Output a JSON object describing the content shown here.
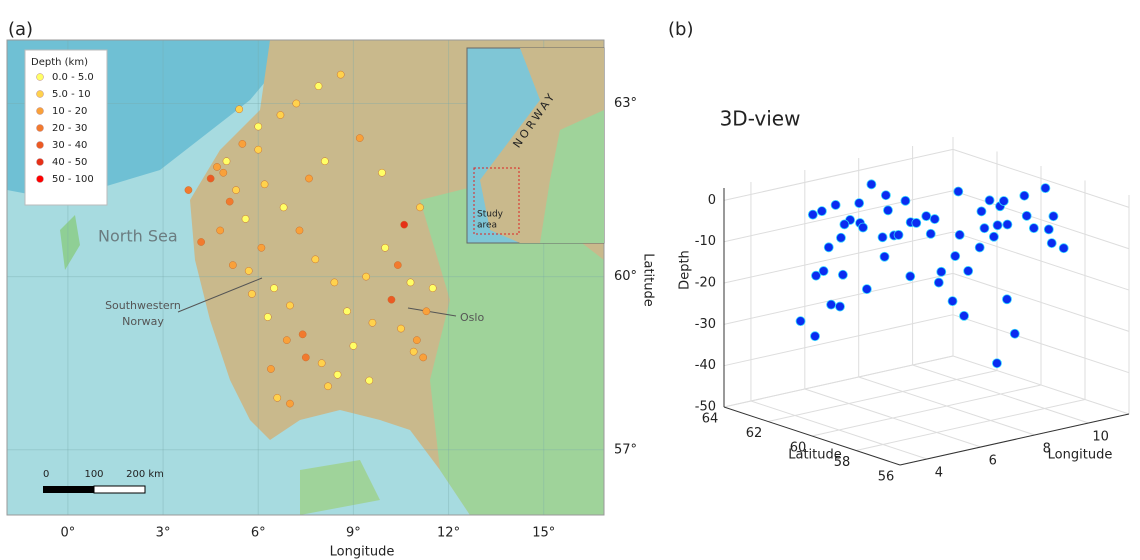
{
  "panel_a": {
    "label": "(a)",
    "x_label": "Longitude",
    "y_label": "Latitude",
    "xlim": [
      -1.92,
      16.9
    ],
    "ylim": [
      55.87,
      64.1
    ],
    "xticks": [
      {
        "value": 0,
        "label": "0°"
      },
      {
        "value": 3,
        "label": "3°"
      },
      {
        "value": 6,
        "label": "6°"
      },
      {
        "value": 9,
        "label": "9°"
      },
      {
        "value": 12,
        "label": "12°"
      },
      {
        "value": 15,
        "label": "15°"
      }
    ],
    "yticks": [
      {
        "value": 57,
        "label": "57°"
      },
      {
        "value": 60,
        "label": "60°"
      },
      {
        "value": 63,
        "label": "63°"
      }
    ],
    "legend_title": "Depth (km)",
    "depth_classes": [
      {
        "min": 0,
        "max": 5,
        "label": "0.0 - 5.0",
        "color": "#ffff66"
      },
      {
        "min": 5,
        "max": 10,
        "label": "5.0 - 10",
        "color": "#ffd24d"
      },
      {
        "min": 10,
        "max": 20,
        "label": "10 - 20",
        "color": "#f9a13a"
      },
      {
        "min": 20,
        "max": 30,
        "label": "20 - 30",
        "color": "#f27a2e"
      },
      {
        "min": 30,
        "max": 40,
        "label": "30 - 40",
        "color": "#ec5a23"
      },
      {
        "min": 40,
        "max": 50,
        "label": "40 - 50",
        "color": "#e63017"
      },
      {
        "min": 50,
        "max": 100,
        "label": "50 - 100",
        "color": "#ff0000"
      }
    ],
    "annotations": {
      "sea": "North Sea",
      "region": [
        "Southwestern",
        "Norway"
      ],
      "city": "Oslo"
    },
    "inset": {
      "country": "NORWAY",
      "area_label": [
        "Study",
        "area"
      ]
    },
    "scale_bar": [
      0,
      100,
      {
        "value": 200,
        "label": "200 km"
      }
    ],
    "events": {
      "lon": [
        5.0,
        5.3,
        4.8,
        5.6,
        6.1,
        6.5,
        7.0,
        7.4,
        8.0,
        8.5,
        9.0,
        9.6,
        10.2,
        10.8,
        11.3,
        5.2,
        5.8,
        6.3,
        6.9,
        7.5,
        8.2,
        8.8,
        9.4,
        10.0,
        10.6,
        11.1,
        4.9,
        5.5,
        6.0,
        6.7,
        7.2,
        7.9,
        8.6,
        9.2,
        9.9,
        10.4,
        11.0,
        6.2,
        6.8,
        7.3,
        7.8,
        8.4,
        5.1,
        5.7,
        6.4,
        4.5,
        4.7,
        7.0,
        6.6,
        9.5,
        10.9,
        11.5,
        8.1,
        7.6,
        6.0,
        5.4,
        3.8,
        4.2,
        10.5,
        11.2
      ],
      "lat": [
        62.0,
        61.5,
        60.8,
        61.0,
        60.5,
        59.8,
        59.5,
        59.0,
        58.5,
        58.3,
        58.8,
        59.2,
        59.6,
        59.9,
        59.4,
        60.2,
        59.7,
        59.3,
        58.9,
        58.6,
        58.1,
        59.4,
        60.0,
        60.5,
        60.9,
        61.2,
        61.8,
        62.3,
        62.6,
        62.8,
        63.0,
        63.3,
        63.5,
        62.4,
        61.8,
        60.2,
        58.9,
        61.6,
        61.2,
        60.8,
        60.3,
        59.9,
        61.3,
        60.1,
        58.4,
        61.7,
        61.9,
        57.8,
        57.9,
        58.2,
        58.7,
        59.8,
        62.0,
        61.7,
        62.2,
        62.9,
        61.5,
        60.6,
        59.1,
        58.6
      ],
      "depth": [
        2,
        8,
        15,
        4,
        12,
        3,
        6,
        22,
        9,
        4,
        1,
        7,
        35,
        3,
        11,
        18,
        5,
        2,
        14,
        25,
        6,
        3,
        9,
        4,
        45,
        7,
        16,
        12,
        3,
        8,
        5,
        2,
        6,
        10,
        4,
        28,
        13,
        7,
        3,
        19,
        5,
        9,
        24,
        6,
        15,
        31,
        17,
        12,
        8,
        3,
        6,
        2,
        4,
        11,
        7,
        5,
        26,
        21,
        9,
        14
      ]
    }
  },
  "panel_b": {
    "label": "(b)",
    "title": "3D-view",
    "x_label": "Longitude",
    "y_label": "Latitude",
    "z_label": "Depth",
    "xlim": [
      3,
      11.5
    ],
    "ylim": [
      56,
      64
    ],
    "zlim": [
      -50,
      3
    ],
    "xticks": [
      4,
      6,
      8,
      10
    ],
    "yticks": [
      56,
      58,
      60,
      62,
      64
    ],
    "zticks": [
      0,
      -10,
      -20,
      -30,
      -40,
      -50
    ],
    "color": "#0a2cf0",
    "edge_color": "#33d6ff"
  }
}
